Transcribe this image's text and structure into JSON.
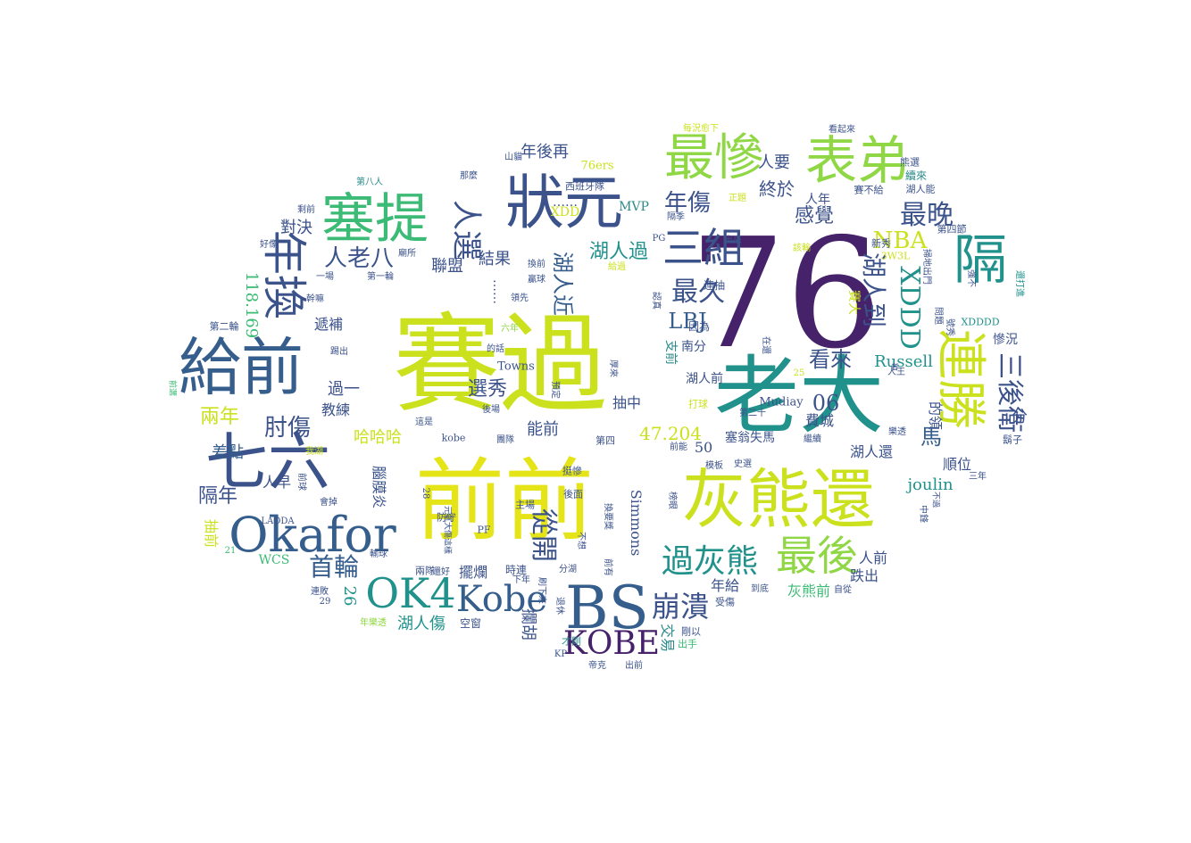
{
  "palette": {
    "purple": "#45226a",
    "indigo": "#3b528b",
    "blue": "#355e8d",
    "teal": "#21918c",
    "sea": "#2c8a8a",
    "green": "#3bbb75",
    "lime": "#8fd744",
    "yellow": "#cbe11e",
    "gold": "#e5e419"
  },
  "words": [
    {
      "text": "賽過",
      "size": 120
    },
    {
      "text": "76",
      "size": 170
    },
    {
      "text": "老大",
      "size": 95
    },
    {
      "text": "前前",
      "size": 100
    },
    {
      "text": "灰熊還",
      "size": 72
    },
    {
      "text": "狀元",
      "size": 66
    },
    {
      "text": "給前",
      "size": 70
    },
    {
      "text": "七六",
      "size": 70
    },
    {
      "text": "塞提",
      "size": 60
    },
    {
      "text": "表弟",
      "size": 58
    },
    {
      "text": "最慘",
      "size": 56
    },
    {
      "text": "隔",
      "size": 60
    },
    {
      "text": "Okafor",
      "size": 54
    },
    {
      "text": "BS",
      "size": 66
    },
    {
      "text": "連勝",
      "size": 56
    },
    {
      "text": "年換",
      "size": 50
    },
    {
      "text": "三組",
      "size": 46
    },
    {
      "text": "最後",
      "size": 46
    },
    {
      "text": "OK4",
      "size": 46
    },
    {
      "text": "Kobe",
      "size": 40
    },
    {
      "text": "KOBE",
      "size": 36
    },
    {
      "text": "過灰熊",
      "size": 36
    },
    {
      "text": "崩潰",
      "size": 32
    },
    {
      "text": "人選",
      "size": 34
    },
    {
      "text": "XDDD",
      "size": 30
    },
    {
      "text": "最晚",
      "size": 30
    },
    {
      "text": "三後衛",
      "size": 30
    },
    {
      "text": "最久",
      "size": 30
    },
    {
      "text": "湖人到",
      "size": 28
    },
    {
      "text": "NBA",
      "size": 26
    },
    {
      "text": "年傷",
      "size": 26
    },
    {
      "text": "首輪",
      "size": 28
    },
    {
      "text": "從開",
      "size": 30
    },
    {
      "text": "肘傷",
      "size": 26
    },
    {
      "text": "人老八",
      "size": 26
    },
    {
      "text": "看來",
      "size": 24
    },
    {
      "text": "馬",
      "size": 24
    },
    {
      "text": "LBJ",
      "size": 24
    },
    {
      "text": "湖人近",
      "size": 24
    },
    {
      "text": "選秀",
      "size": 22
    },
    {
      "text": "隔年",
      "size": 22
    },
    {
      "text": "兩年",
      "size": 22
    },
    {
      "text": "湖人過",
      "size": 22
    },
    {
      "text": "06",
      "size": 24
    },
    {
      "text": "感覺",
      "size": 22
    },
    {
      "text": "終於",
      "size": 20
    },
    {
      "text": "年後再",
      "size": 18
    },
    {
      "text": "人要",
      "size": 18
    },
    {
      "text": "聯盟",
      "size": 18
    },
    {
      "text": "結果",
      "size": 18
    },
    {
      "text": "對決",
      "size": 18
    },
    {
      "text": "118.169",
      "size": 18
    },
    {
      "text": "遞補",
      "size": 16
    },
    {
      "text": "過一",
      "size": 18
    },
    {
      "text": "教練",
      "size": 16
    },
    {
      "text": "差點",
      "size": 18
    },
    {
      "text": "哈哈哈",
      "size": 18
    },
    {
      "text": "能前",
      "size": 18
    },
    {
      "text": "47.204",
      "size": 20
    },
    {
      "text": "抽中",
      "size": 16
    },
    {
      "text": "費城",
      "size": 16
    },
    {
      "text": "Russell",
      "size": 18
    },
    {
      "text": "的領",
      "size": 16
    },
    {
      "text": "湖人還",
      "size": 16
    },
    {
      "text": "分",
      "size": 18
    },
    {
      "text": "joulin",
      "size": 18
    },
    {
      "text": "順位",
      "size": 16
    },
    {
      "text": "人前",
      "size": 16
    },
    {
      "text": "跌出",
      "size": 16
    },
    {
      "text": "灰熊前",
      "size": 16
    },
    {
      "text": "年給",
      "size": 16
    },
    {
      "text": "湖人傷",
      "size": 18
    },
    {
      "text": "擺爛",
      "size": 16
    },
    {
      "text": "攔胡",
      "size": 18
    },
    {
      "text": "26",
      "size": 18
    },
    {
      "text": "抽前",
      "size": 16
    },
    {
      "text": "人早",
      "size": 16
    },
    {
      "text": "腦膜炎",
      "size": 16
    },
    {
      "text": "Simmons",
      "size": 16
    },
    {
      "text": "塞翁失馬",
      "size": 14
    },
    {
      "text": "50",
      "size": 16
    },
    {
      "text": "交易",
      "size": 16
    },
    {
      "text": "WCS",
      "size": 14
    },
    {
      "text": "MVP",
      "size": 14
    },
    {
      "text": "XDD",
      "size": 14
    },
    {
      "text": "湖人前",
      "size": 14
    },
    {
      "text": "南分",
      "size": 14
    },
    {
      "text": "支前",
      "size": 14
    },
    {
      "text": "賽大",
      "size": 14
    },
    {
      "text": "人年",
      "size": 14
    },
    {
      "text": "慘況",
      "size": 14
    },
    {
      "text": "Towns",
      "size": 13
    },
    {
      "text": "Mudiay",
      "size": 13
    },
    {
      "text": "76ers",
      "size": 13
    },
    {
      "text": "西班牙隊",
      "size": 11
    },
    {
      "text": "……",
      "size": 14
    },
    {
      "text": "……",
      "size": 14
    },
    {
      "text": "每況愈下",
      "size": 10
    },
    {
      "text": "看起來",
      "size": 10
    },
    {
      "text": "熊選",
      "size": 11
    },
    {
      "text": "續來",
      "size": 12
    },
    {
      "text": "賽不給",
      "size": 11
    },
    {
      "text": "湖人能",
      "size": 11
    },
    {
      "text": "第四節",
      "size": 11
    },
    {
      "text": "XDDDD",
      "size": 11
    },
    {
      "text": "新秀",
      "size": 11
    },
    {
      "text": "3W3L",
      "size": 11
    },
    {
      "text": "掃地出門",
      "size": 10
    },
    {
      "text": "還打進",
      "size": 10
    },
    {
      "text": "山貓",
      "size": 10
    },
    {
      "text": "那麼",
      "size": 10
    },
    {
      "text": "第八人",
      "size": 10
    },
    {
      "text": "剩前",
      "size": 10
    },
    {
      "text": "好像",
      "size": 10
    },
    {
      "text": "廟所",
      "size": 10
    },
    {
      "text": "第一輪",
      "size": 10
    },
    {
      "text": "一場",
      "size": 10
    },
    {
      "text": "幹嘛",
      "size": 10
    },
    {
      "text": "第二輪",
      "size": 11
    },
    {
      "text": "踢出",
      "size": 10
    },
    {
      "text": "前選",
      "size": 9
    },
    {
      "text": "我湖",
      "size": 10
    },
    {
      "text": "會掉",
      "size": 10
    },
    {
      "text": "前球",
      "size": 10
    },
    {
      "text": "LAODA",
      "size": 10
    },
    {
      "text": "輸球",
      "size": 10
    },
    {
      "text": "連敗",
      "size": 10
    },
    {
      "text": "29",
      "size": 10
    },
    {
      "text": "21",
      "size": 10
    },
    {
      "text": "年樂透",
      "size": 10
    },
    {
      "text": "防守",
      "size": 11
    },
    {
      "text": "28",
      "size": 10
    },
    {
      "text": "元氣大傷這樣",
      "size": 9
    },
    {
      "text": "兩隊",
      "size": 11
    },
    {
      "text": "還好",
      "size": 10
    },
    {
      "text": "PF",
      "size": 11
    },
    {
      "text": "主場",
      "size": 11
    },
    {
      "text": "後面",
      "size": 11
    },
    {
      "text": "時連",
      "size": 12
    },
    {
      "text": "下年",
      "size": 10
    },
    {
      "text": "刷下來",
      "size": 10
    },
    {
      "text": "空窗",
      "size": 12
    },
    {
      "text": "分湖",
      "size": 10
    },
    {
      "text": "退休",
      "size": 10
    },
    {
      "text": "前有",
      "size": 10
    },
    {
      "text": "才剛",
      "size": 11
    },
    {
      "text": "KP",
      "size": 10
    },
    {
      "text": "帝克",
      "size": 10
    },
    {
      "text": "出前",
      "size": 10
    },
    {
      "text": "換要獎",
      "size": 10
    },
    {
      "text": "不想",
      "size": 10
    },
    {
      "text": "榜眼",
      "size": 10
    },
    {
      "text": "挺慘",
      "size": 11
    },
    {
      "text": "出手",
      "size": 11
    },
    {
      "text": "受傷",
      "size": 11
    },
    {
      "text": "剛以",
      "size": 11
    },
    {
      "text": "到底",
      "size": 10
    },
    {
      "text": "自從",
      "size": 10
    },
    {
      "text": "模板",
      "size": 10
    },
    {
      "text": "史選",
      "size": 10
    },
    {
      "text": "前能",
      "size": 10
    },
    {
      "text": "團隊",
      "size": 10
    },
    {
      "text": "kobe",
      "size": 11
    },
    {
      "text": "這是",
      "size": 10
    },
    {
      "text": "第四",
      "size": 11
    },
    {
      "text": "後場",
      "size": 10
    },
    {
      "text": "預定",
      "size": 10
    },
    {
      "text": "厚來",
      "size": 10
    },
    {
      "text": "的話",
      "size": 10
    },
    {
      "text": "六年",
      "size": 10
    },
    {
      "text": "領先",
      "size": 10
    },
    {
      "text": "換前",
      "size": 10
    },
    {
      "text": "贏球",
      "size": 10
    },
    {
      "text": "給過",
      "size": 10
    },
    {
      "text": "PG",
      "size": 10
    },
    {
      "text": "隔季",
      "size": 10
    },
    {
      "text": "認真",
      "size": 10
    },
    {
      "text": "出來",
      "size": 10
    },
    {
      "text": "連抽",
      "size": 12
    },
    {
      "text": "因為",
      "size": 12
    },
    {
      "text": "在還",
      "size": 10
    },
    {
      "text": "該輸",
      "size": 10
    },
    {
      "text": "正題",
      "size": 10
    },
    {
      "text": "強不",
      "size": 10
    },
    {
      "text": "問題",
      "size": 10
    },
    {
      "text": "號秀",
      "size": 10
    },
    {
      "text": "人王",
      "size": 10
    },
    {
      "text": "打球",
      "size": 11
    },
    {
      "text": "第二十",
      "size": 10
    },
    {
      "text": "25",
      "size": 10
    },
    {
      "text": "繼續",
      "size": 10
    },
    {
      "text": "樂透",
      "size": 10
    },
    {
      "text": "鬍子",
      "size": 11
    },
    {
      "text": "三年",
      "size": 10
    },
    {
      "text": "不過",
      "size": 9
    },
    {
      "text": "中鋒",
      "size": 10
    },
    {
      "text": "者",
      "size": 9
    }
  ]
}
